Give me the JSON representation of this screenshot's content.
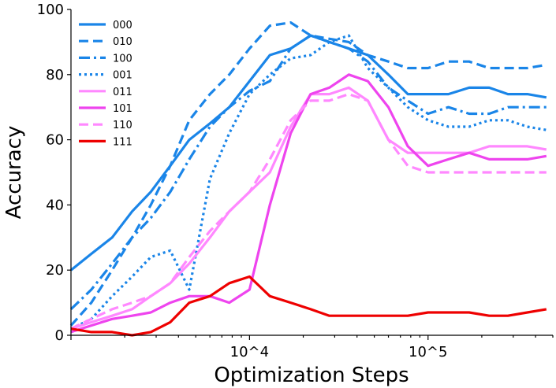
{
  "chart_data": {
    "type": "line",
    "xlabel": "Optimization Steps",
    "ylabel": "Accuracy",
    "x_scale": "log",
    "xlim": [
      1000,
      500000
    ],
    "ylim": [
      0,
      100
    ],
    "y_ticks": [
      "0",
      "20",
      "40",
      "60",
      "80",
      "100"
    ],
    "x_tick_labels": [
      "10^4",
      "10^5"
    ],
    "grid": false,
    "legend_position": "top-left",
    "x": [
      1000,
      1300,
      1700,
      2200,
      2800,
      3600,
      4600,
      6000,
      7700,
      10000,
      13000,
      17000,
      22000,
      28000,
      36000,
      46000,
      60000,
      77000,
      100000,
      130000,
      170000,
      220000,
      280000,
      360000,
      460000
    ],
    "series": [
      {
        "name": "000",
        "color": "#1a85e8",
        "dash": "solid",
        "values": [
          20,
          25,
          30,
          38,
          44,
          52,
          60,
          65,
          70,
          78,
          86,
          88,
          92,
          90,
          88,
          86,
          80,
          74,
          74,
          74,
          76,
          76,
          74,
          74,
          73
        ]
      },
      {
        "name": "010",
        "color": "#1a85e8",
        "dash": "dashed",
        "values": [
          3,
          10,
          20,
          30,
          40,
          52,
          66,
          74,
          80,
          88,
          95,
          96,
          92,
          91,
          90,
          86,
          84,
          82,
          82,
          84,
          84,
          82,
          82,
          82,
          83
        ]
      },
      {
        "name": "100",
        "color": "#1a85e8",
        "dash": "dashdot",
        "values": [
          8,
          14,
          22,
          30,
          36,
          44,
          54,
          64,
          70,
          75,
          78,
          88,
          92,
          90,
          88,
          84,
          76,
          72,
          68,
          70,
          68,
          68,
          70,
          70,
          70
        ]
      },
      {
        "name": "001",
        "color": "#1a85e8",
        "dash": "dotted",
        "values": [
          2,
          5,
          12,
          18,
          24,
          26,
          14,
          48,
          62,
          74,
          80,
          85,
          86,
          90,
          92,
          82,
          76,
          70,
          66,
          64,
          64,
          66,
          66,
          64,
          63
        ]
      },
      {
        "name": "011",
        "color": "#ff88ff",
        "dash": "solid",
        "values": [
          2,
          4,
          6,
          8,
          12,
          16,
          22,
          30,
          38,
          44,
          50,
          64,
          74,
          74,
          76,
          72,
          60,
          56,
          56,
          56,
          56,
          58,
          58,
          58,
          57
        ]
      },
      {
        "name": "101",
        "color": "#ee44ee",
        "dash": "solid",
        "values": [
          1,
          3,
          5,
          6,
          7,
          10,
          12,
          12,
          10,
          14,
          40,
          62,
          74,
          76,
          80,
          78,
          70,
          58,
          52,
          54,
          56,
          54,
          54,
          54,
          55
        ]
      },
      {
        "name": "110",
        "color": "#ff88ff",
        "dash": "dashed",
        "values": [
          2,
          5,
          8,
          10,
          12,
          16,
          24,
          32,
          38,
          44,
          54,
          66,
          72,
          72,
          74,
          72,
          60,
          52,
          50,
          50,
          50,
          50,
          50,
          50,
          50
        ]
      },
      {
        "name": "111",
        "color": "#ee0000",
        "dash": "solid",
        "values": [
          2,
          1,
          1,
          0,
          1,
          4,
          10,
          12,
          16,
          18,
          12,
          10,
          8,
          6,
          6,
          6,
          6,
          6,
          7,
          7,
          7,
          6,
          6,
          7,
          8
        ]
      }
    ]
  }
}
